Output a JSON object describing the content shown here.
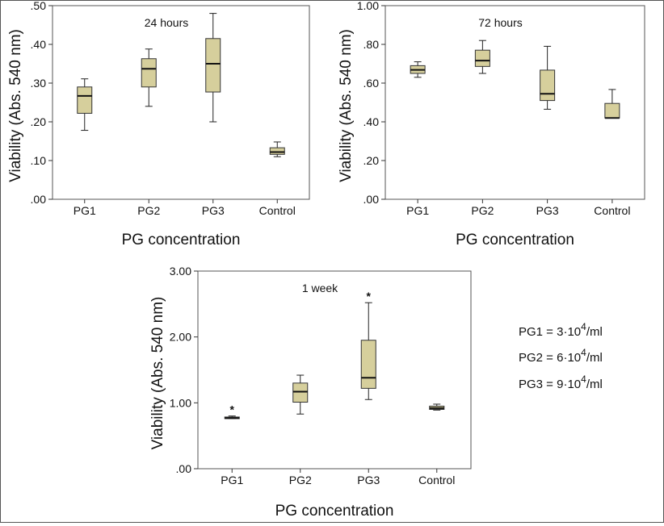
{
  "chart_data": [
    {
      "type": "box",
      "title": "24 hours",
      "xlabel": "PG concentration",
      "ylabel": "Viability (Abs. 540 nm)",
      "ylim": [
        0,
        0.5
      ],
      "yticks": [
        ".00",
        ".10",
        ".20",
        ".30",
        ".40",
        ".50"
      ],
      "categories": [
        "PG1",
        "PG2",
        "PG3",
        "Control"
      ],
      "color": "#d6cf9c",
      "boxes": [
        {
          "min": 0.178,
          "q1": 0.222,
          "median": 0.267,
          "q3": 0.29,
          "max": 0.311
        },
        {
          "min": 0.24,
          "q1": 0.29,
          "median": 0.337,
          "q3": 0.363,
          "max": 0.388
        },
        {
          "min": 0.2,
          "q1": 0.277,
          "median": 0.35,
          "q3": 0.415,
          "max": 0.48
        },
        {
          "min": 0.11,
          "q1": 0.116,
          "median": 0.122,
          "q3": 0.133,
          "max": 0.148
        }
      ],
      "outliers": []
    },
    {
      "type": "box",
      "title": "72 hours",
      "xlabel": "PG concentration",
      "ylabel": "Viability (Abs. 540 nm)",
      "ylim": [
        0,
        1.0
      ],
      "yticks": [
        ".00",
        ".20",
        ".40",
        ".60",
        ".80",
        "1.00"
      ],
      "categories": [
        "PG1",
        "PG2",
        "PG3",
        "Control"
      ],
      "color": "#d6cf9c",
      "boxes": [
        {
          "min": 0.63,
          "q1": 0.65,
          "median": 0.668,
          "q3": 0.69,
          "max": 0.71
        },
        {
          "min": 0.65,
          "q1": 0.686,
          "median": 0.716,
          "q3": 0.77,
          "max": 0.82
        },
        {
          "min": 0.465,
          "q1": 0.51,
          "median": 0.545,
          "q3": 0.667,
          "max": 0.79
        },
        {
          "min": 0.42,
          "q1": 0.42,
          "median": 0.42,
          "q3": 0.495,
          "max": 0.567
        }
      ],
      "outliers": []
    },
    {
      "type": "box",
      "title": "1 week",
      "xlabel": "PG concentration",
      "ylabel": "Viability (Abs. 540 nm)",
      "ylim": [
        0,
        3.0
      ],
      "yticks": [
        ".00",
        "1.00",
        "2.00",
        "3.00"
      ],
      "categories": [
        "PG1",
        "PG2",
        "PG3",
        "Control"
      ],
      "color": "#d6cf9c",
      "boxes": [
        {
          "min": 0.76,
          "q1": 0.76,
          "median": 0.77,
          "q3": 0.785,
          "max": 0.8
        },
        {
          "min": 0.83,
          "q1": 1.01,
          "median": 1.17,
          "q3": 1.3,
          "max": 1.42
        },
        {
          "min": 1.05,
          "q1": 1.22,
          "median": 1.38,
          "q3": 1.95,
          "max": 2.52
        },
        {
          "min": 0.89,
          "q1": 0.9,
          "median": 0.92,
          "q3": 0.95,
          "max": 0.98
        }
      ],
      "outliers": [
        {
          "category": "PG1",
          "symbol": "*"
        },
        {
          "category": "PG3",
          "symbol": "*"
        }
      ]
    }
  ],
  "legend": {
    "pg1": {
      "lhs": "PG1 = 3·10",
      "exp": "4",
      "unit": "/ml"
    },
    "pg2": {
      "lhs": "PG2 = 6·10",
      "exp": "4",
      "unit": "/ml"
    },
    "pg3": {
      "lhs": "PG3 = 9·10",
      "exp": "4",
      "unit": "/ml"
    }
  }
}
